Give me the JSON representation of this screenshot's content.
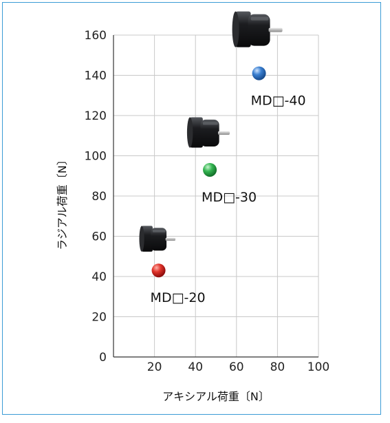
{
  "chart_data": {
    "type": "scatter",
    "xlabel": "アキシアル荷重〔N〕",
    "ylabel": "ラジアル荷重〔N〕",
    "xlim": [
      0,
      100
    ],
    "ylim": [
      0,
      160
    ],
    "x_ticks": [
      "20",
      "40",
      "60",
      "80",
      "100"
    ],
    "y_ticks": [
      "0",
      "20",
      "40",
      "60",
      "80",
      "100",
      "120",
      "140",
      "160"
    ],
    "grid": true,
    "points": [
      {
        "label": "MD□-20",
        "x": 22,
        "y": 43,
        "color": "#d21e1e"
      },
      {
        "label": "MD□-30",
        "x": 47,
        "y": 93,
        "color": "#2fb04a"
      },
      {
        "label": "MD□-40",
        "x": 71,
        "y": 141,
        "color": "#2f74c8"
      }
    ],
    "motor_icon": "gearmotor-image"
  },
  "colors": {
    "frame": "#3a9bd5",
    "grid": "#c8c8c8",
    "axis": "#333333"
  }
}
